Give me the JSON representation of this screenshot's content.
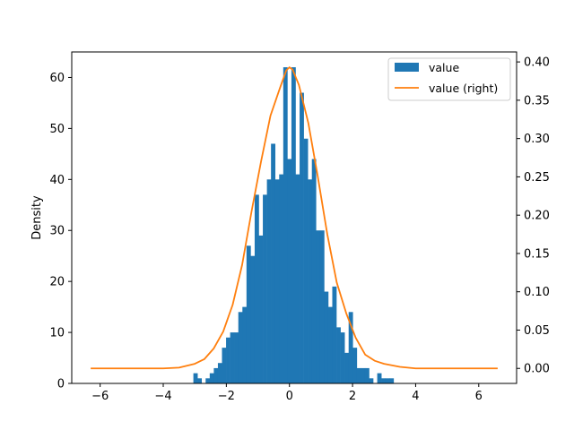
{
  "chart_data": {
    "type": "bar",
    "ylabel": "Density",
    "xlim": [
      -6.9,
      7.2
    ],
    "ylim": [
      0,
      65
    ],
    "ylim_right": [
      -0.0196,
      0.413
    ],
    "x_ticks": [
      -6,
      -4,
      -2,
      0,
      2,
      4,
      6
    ],
    "y_ticks": [
      0,
      10,
      20,
      30,
      40,
      50,
      60
    ],
    "y_ticks_right": [
      0.0,
      0.05,
      0.1,
      0.15,
      0.2,
      0.25,
      0.3,
      0.35,
      0.4
    ],
    "x_tick_labels": [
      "−6",
      "−4",
      "−2",
      "0",
      "2",
      "4",
      "6"
    ],
    "y_tick_labels": [
      "0",
      "10",
      "20",
      "30",
      "40",
      "50",
      "60"
    ],
    "y_tick_labels_right": [
      "0.00",
      "0.05",
      "0.10",
      "0.15",
      "0.20",
      "0.25",
      "0.30",
      "0.35",
      "0.40"
    ],
    "legend": {
      "placement": "top-right",
      "entries": [
        "value",
        "value (right)"
      ]
    },
    "series": [
      {
        "name": "value",
        "type": "histogram",
        "axis": "left",
        "color": "#1f77b4",
        "bin_start": -3.045,
        "bin_width": 0.1295,
        "counts": [
          2,
          1,
          0,
          1,
          2,
          3,
          4,
          7,
          9,
          10,
          10,
          14,
          15,
          27,
          25,
          37,
          29,
          37,
          40,
          47,
          40,
          41,
          62,
          44,
          62,
          41,
          57,
          48,
          40,
          44,
          30,
          30,
          18,
          15,
          19,
          11,
          10,
          6,
          14,
          7,
          3,
          3,
          3,
          1,
          0,
          2,
          1,
          1,
          1
        ]
      },
      {
        "name": "value (right)",
        "type": "kde",
        "axis": "right",
        "color": "#ff7f0e",
        "x": [
          -6.3,
          -5.0,
          -4.0,
          -3.5,
          -3.0,
          -2.7,
          -2.4,
          -2.1,
          -1.8,
          -1.5,
          -1.2,
          -0.9,
          -0.6,
          -0.3,
          -0.1,
          0.0,
          0.1,
          0.3,
          0.6,
          0.9,
          1.2,
          1.5,
          1.8,
          2.1,
          2.4,
          2.7,
          3.0,
          3.5,
          4.0,
          5.0,
          6.6
        ],
        "y": [
          0.0,
          0.0,
          0.0,
          0.001,
          0.006,
          0.012,
          0.026,
          0.048,
          0.083,
          0.135,
          0.205,
          0.27,
          0.33,
          0.366,
          0.389,
          0.393,
          0.39,
          0.37,
          0.32,
          0.25,
          0.175,
          0.112,
          0.072,
          0.04,
          0.018,
          0.01,
          0.006,
          0.002,
          0.0,
          0.0,
          0.0
        ]
      }
    ]
  }
}
